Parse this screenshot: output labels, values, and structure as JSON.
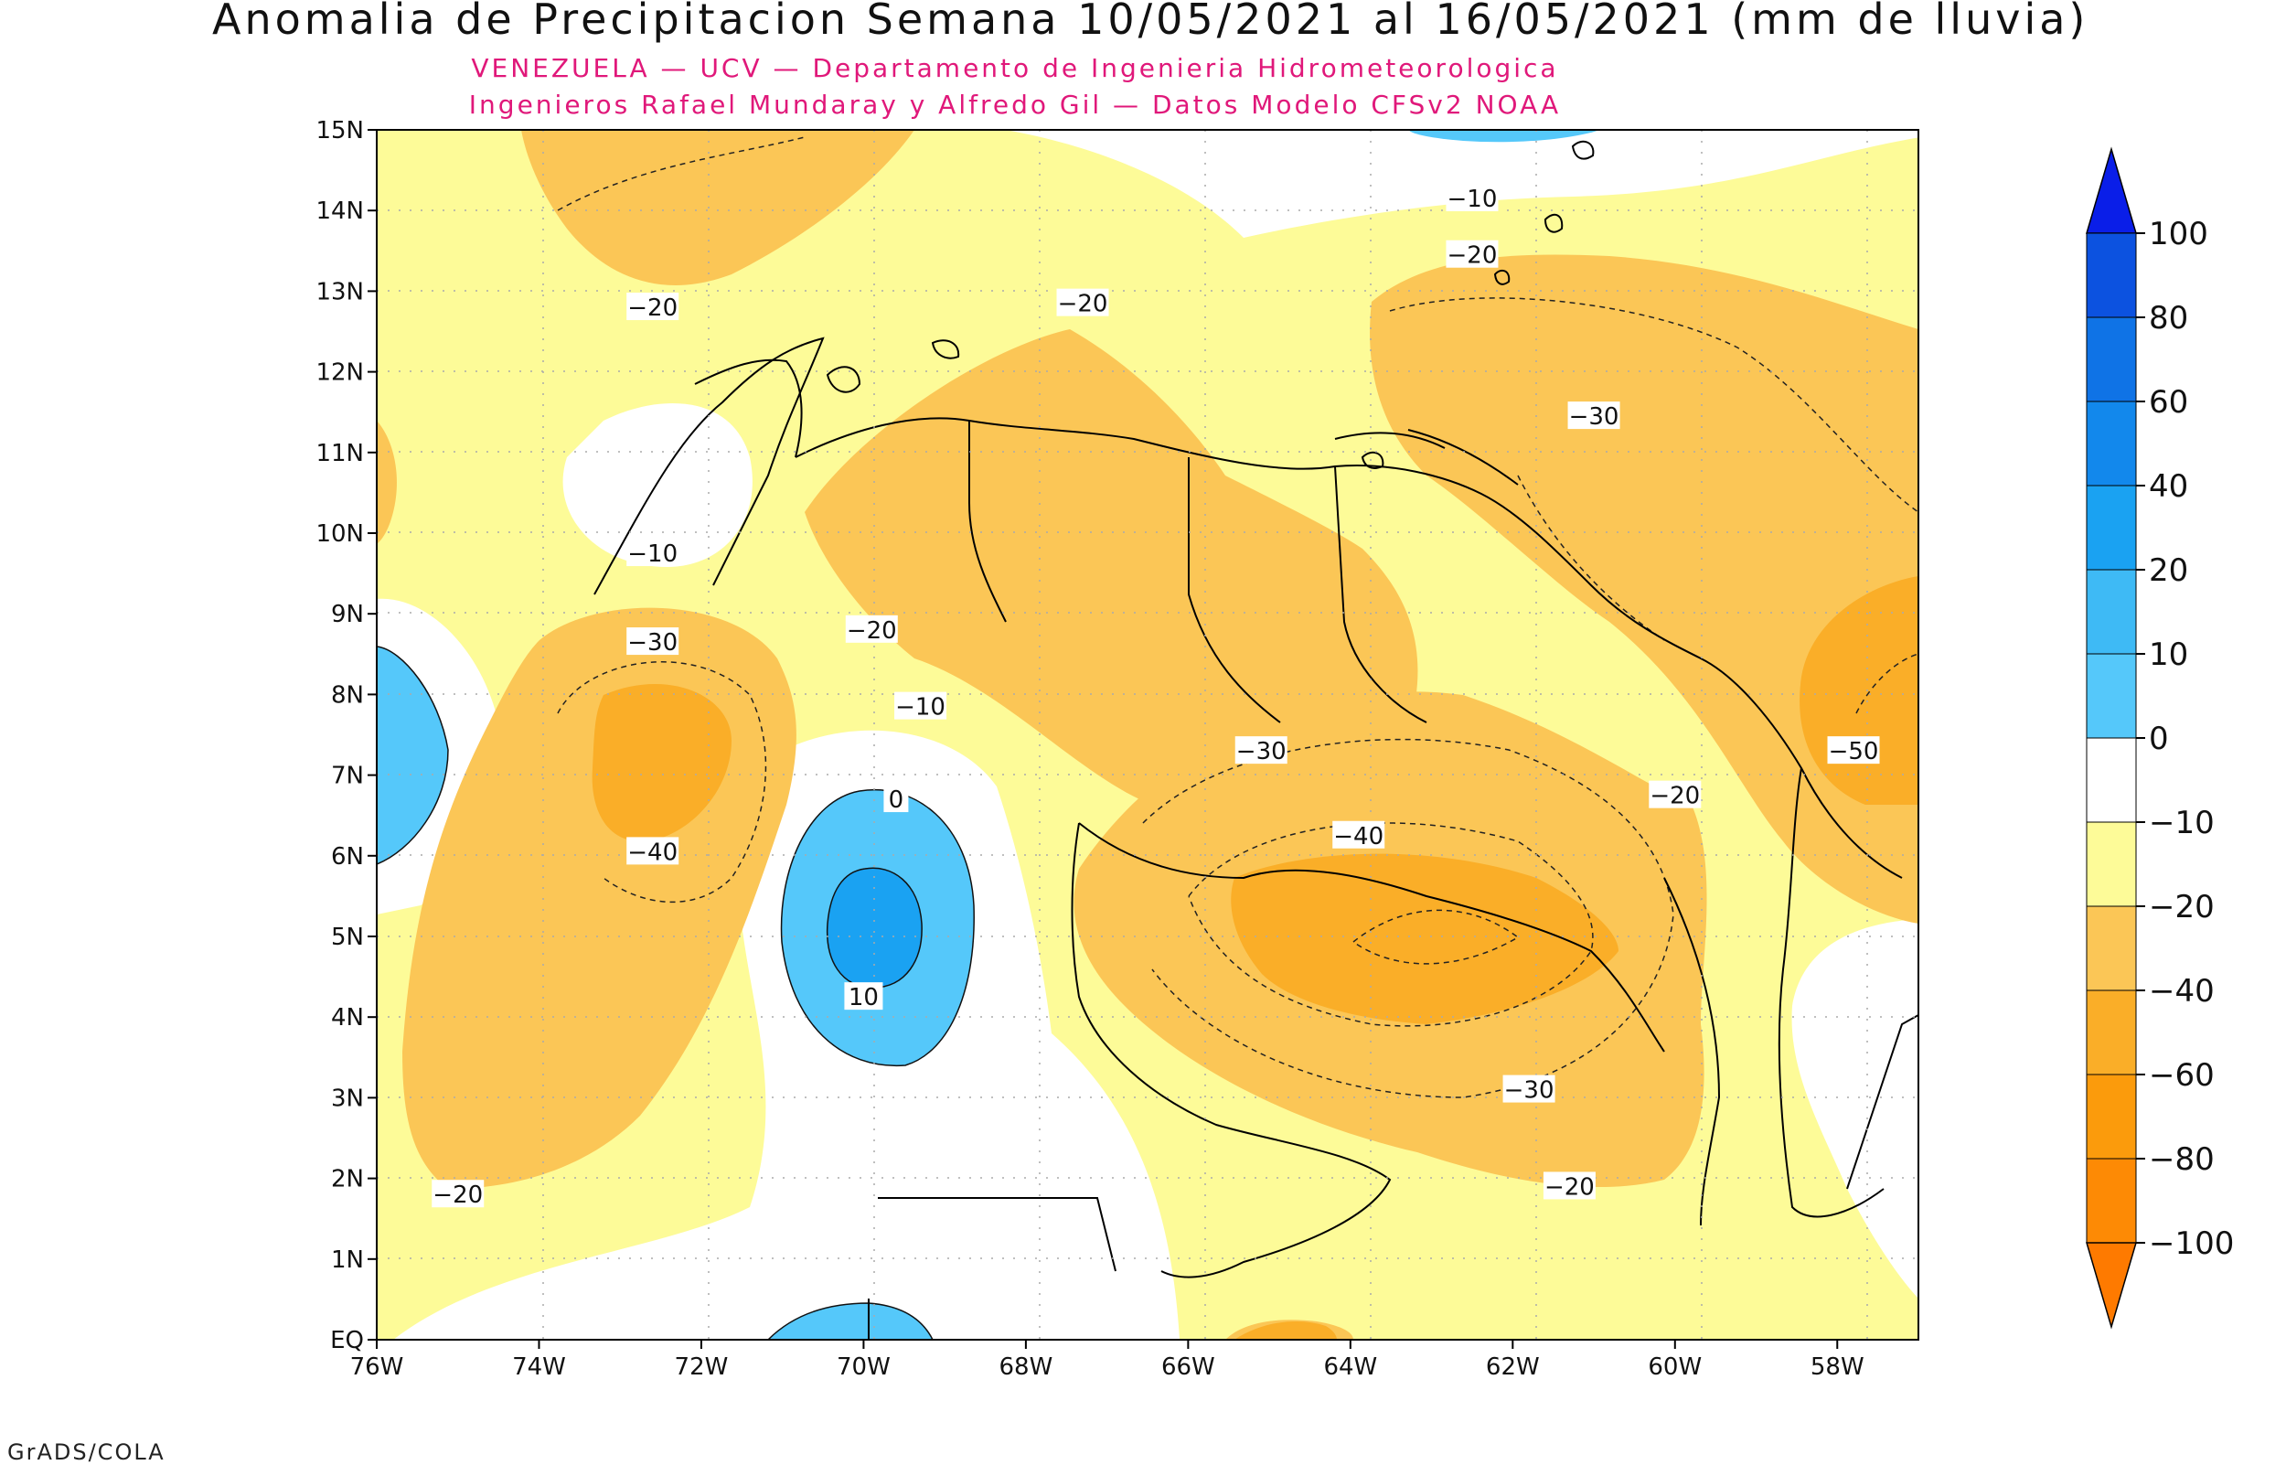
{
  "title": "Anomalia de Precipitacion Semana 10/05/2021 al 16/05/2021 (mm de lluvia)",
  "subtitle_line1": "VENEZUELA — UCV — Departamento de Ingenieria Hidrometeorologica",
  "subtitle_line2": "Ingenieros Rafael Mundaray y Alfredo Gil — Datos Modelo CFSv2 NOAA",
  "credit": "GrADS/COLA",
  "colors": {
    "pos_100": "#0a1ee8",
    "pos_80": "#0c52e0",
    "pos_60": "#0f73e6",
    "pos_40": "#1288ec",
    "pos_20": "#1aa2f2",
    "pos_10": "#3ebaf5",
    "pos_0": "#55c8fa",
    "zero": "#ffffff",
    "neg_10": "#fdfb98",
    "neg_20": "#fbc656",
    "neg_40": "#faae28",
    "neg_60": "#fb9b0c",
    "neg_80": "#fd8a05",
    "neg_100": "#fe7a00"
  },
  "chart_data": {
    "type": "heatmap",
    "x_axis": {
      "ticks": [
        "76W",
        "74W",
        "72W",
        "70W",
        "68W",
        "66W",
        "64W",
        "62W",
        "60W",
        "58W"
      ],
      "range": [
        -76,
        -57
      ]
    },
    "y_axis": {
      "ticks": [
        "EQ",
        "1N",
        "2N",
        "3N",
        "4N",
        "5N",
        "6N",
        "7N",
        "8N",
        "9N",
        "10N",
        "11N",
        "12N",
        "13N",
        "14N",
        "15N"
      ],
      "range": [
        0,
        15
      ]
    },
    "grid": true,
    "colorbar": {
      "labels": [
        "100",
        "80",
        "60",
        "40",
        "20",
        "10",
        "0",
        "−10",
        "−20",
        "−40",
        "−60",
        "−80",
        "−100"
      ]
    },
    "contour_labels": [
      {
        "text": "−10",
        "lon": -62.5,
        "lat": 14.15
      },
      {
        "text": "−20",
        "lon": -62.5,
        "lat": 13.45
      },
      {
        "text": "−20",
        "lon": -72.6,
        "lat": 12.8
      },
      {
        "text": "−20",
        "lon": -67.3,
        "lat": 12.85
      },
      {
        "text": "−30",
        "lon": -61.0,
        "lat": 11.45
      },
      {
        "text": "−10",
        "lon": -72.6,
        "lat": 9.75
      },
      {
        "text": "−30",
        "lon": -72.6,
        "lat": 8.65
      },
      {
        "text": "−20",
        "lon": -69.9,
        "lat": 8.8
      },
      {
        "text": "−10",
        "lon": -69.3,
        "lat": 7.85
      },
      {
        "text": "−30",
        "lon": -65.1,
        "lat": 7.3
      },
      {
        "text": "−50",
        "lon": -57.8,
        "lat": 7.3
      },
      {
        "text": "0",
        "lon": -69.6,
        "lat": 6.7
      },
      {
        "text": "−20",
        "lon": -60.0,
        "lat": 6.75
      },
      {
        "text": "−40",
        "lon": -72.6,
        "lat": 6.05
      },
      {
        "text": "−40",
        "lon": -63.9,
        "lat": 6.25
      },
      {
        "text": "10",
        "lon": -70.0,
        "lat": 4.25
      },
      {
        "text": "−30",
        "lon": -61.8,
        "lat": 3.1
      },
      {
        "text": "−20",
        "lon": -75.0,
        "lat": 1.8
      },
      {
        "text": "−20",
        "lon": -61.3,
        "lat": 1.9
      }
    ]
  }
}
